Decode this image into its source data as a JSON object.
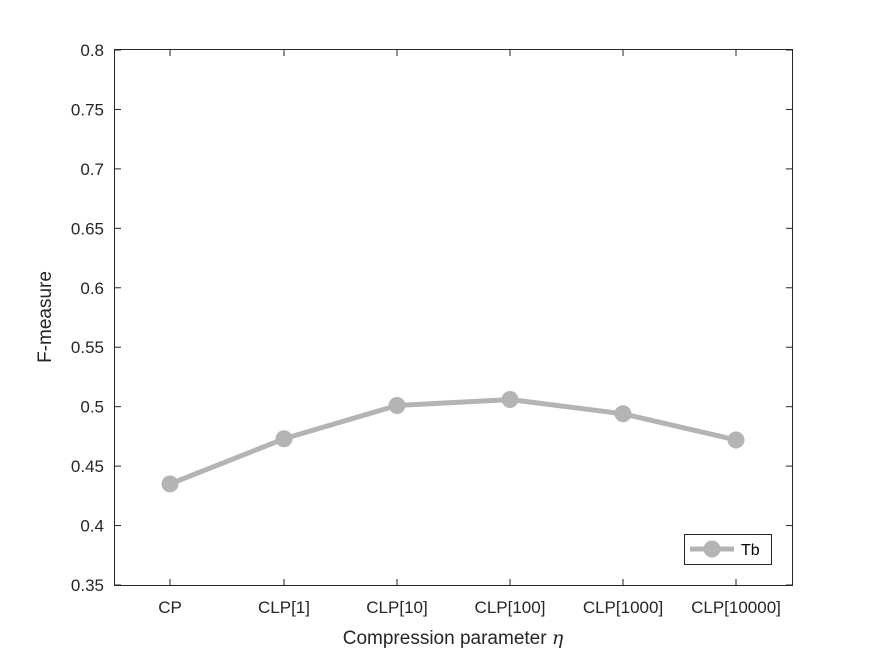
{
  "chart_data": {
    "type": "line",
    "categories": [
      "CP",
      "CLP[1]",
      "CLP[10]",
      "CLP[100]",
      "CLP[1000]",
      "CLP[10000]"
    ],
    "series": [
      {
        "name": "Tb",
        "color": "#b4b4b4",
        "values": [
          0.435,
          0.473,
          0.501,
          0.506,
          0.494,
          0.472
        ]
      }
    ],
    "xlabel_text": "Compression parameter ",
    "xlabel_symbol": "η",
    "ylabel": "F-measure",
    "ylim": [
      0.35,
      0.8
    ],
    "yticks": [
      "0.35",
      "0.4",
      "0.45",
      "0.5",
      "0.55",
      "0.6",
      "0.65",
      "0.7",
      "0.75",
      "0.8"
    ],
    "ytick_values": [
      0.35,
      0.4,
      0.45,
      0.5,
      0.55,
      0.6,
      0.65,
      0.7,
      0.75,
      0.8
    ],
    "grid": false,
    "legend_position": "bottom-right",
    "axis_color": "#262626"
  }
}
